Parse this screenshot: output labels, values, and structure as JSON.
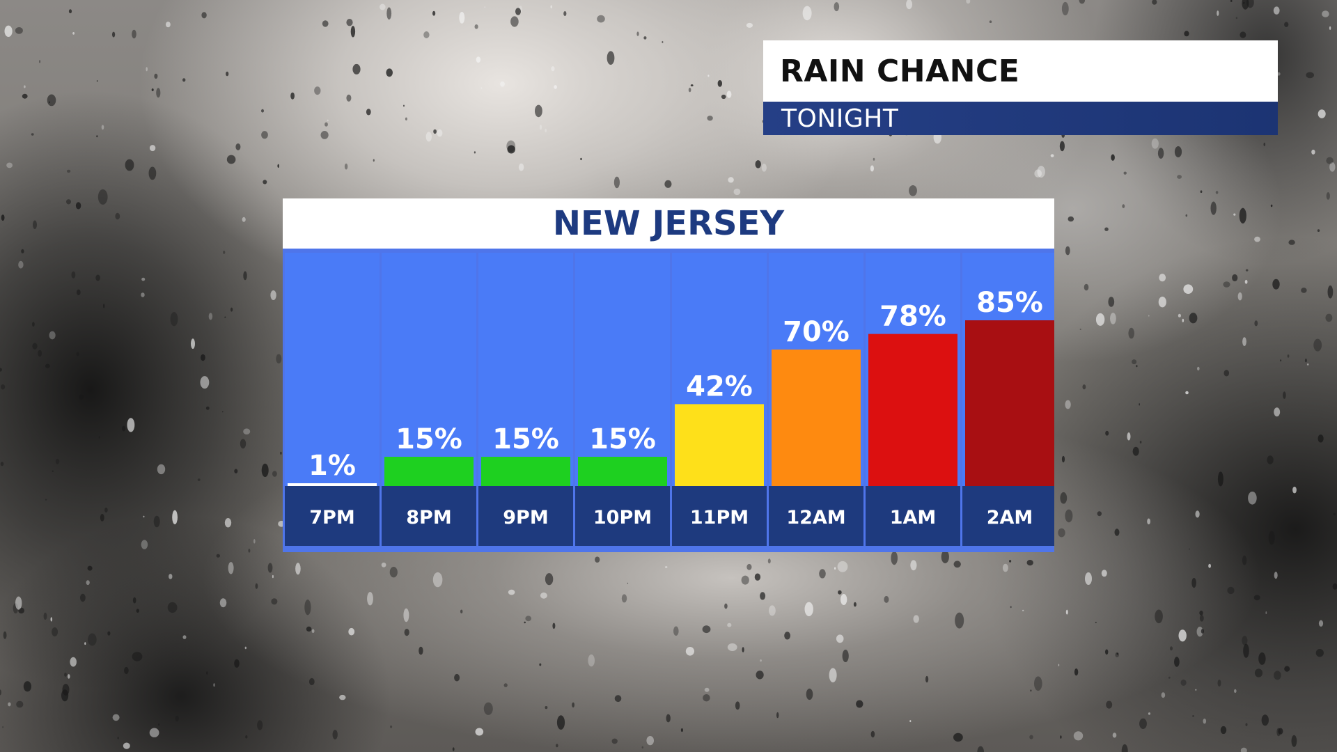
{
  "header": {
    "title": "RAIN CHANCE",
    "subtitle": "TONIGHT"
  },
  "chart_data": {
    "type": "bar",
    "title": "NEW JERSEY",
    "categories": [
      "7PM",
      "8PM",
      "9PM",
      "10PM",
      "11PM",
      "12AM",
      "1AM",
      "2AM"
    ],
    "values": [
      1,
      15,
      15,
      15,
      42,
      70,
      78,
      85
    ],
    "value_labels": [
      "1%",
      "15%",
      "15%",
      "15%",
      "42%",
      "70%",
      "78%",
      "85%"
    ],
    "bar_colors": [
      "#ffffff",
      "#1ed020",
      "#1ed020",
      "#1ed020",
      "#fee01a",
      "#fe8a10",
      "#dc1010",
      "#a80f12"
    ],
    "ylim": [
      0,
      100
    ],
    "grid": false,
    "legend": false
  },
  "colors": {
    "column_background": "#4a7bf7",
    "label_strip": "#1e3a7e",
    "frame": "#4f75ea",
    "region_title": "#1d3a80"
  }
}
